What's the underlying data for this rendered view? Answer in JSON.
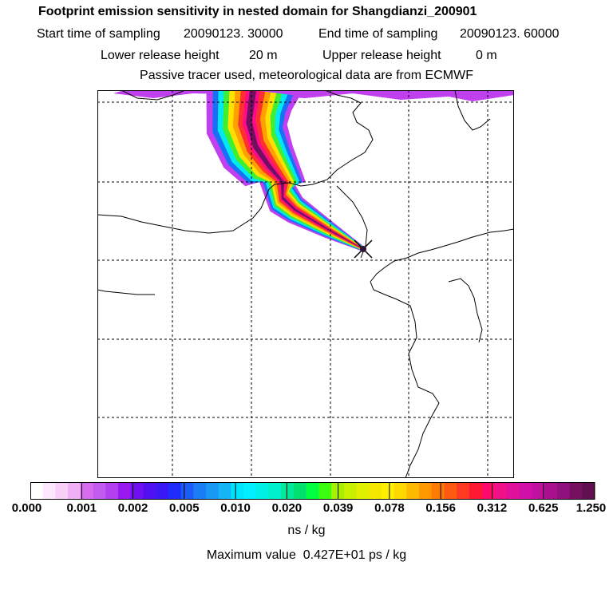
{
  "header": {
    "title": "Footprint emission sensitivity in nested domain for Shangdianzi_200901",
    "start_label": "Start time of sampling",
    "start_value": "20090123. 30000",
    "end_label": "End time of sampling",
    "end_value": "20090123. 60000",
    "lower_label": "Lower release height",
    "lower_value": "20 m",
    "upper_label": "Upper release height",
    "upper_value": "0 m",
    "subtitle": "Passive tracer used, meteorological data are from ECMWF"
  },
  "colorbar": {
    "tick_labels": [
      "0.000",
      "0.001",
      "0.002",
      "0.005",
      "0.010",
      "0.020",
      "0.039",
      "0.078",
      "0.156",
      "0.312",
      "0.625",
      "1.250"
    ],
    "colors": [
      "#ffffff",
      "#fde7fd",
      "#f7cff7",
      "#efb0f5",
      "#d86cf0",
      "#c45bf0",
      "#b23ff0",
      "#9a18f0",
      "#7010f0",
      "#5010f0",
      "#3a18f5",
      "#1e2cfa",
      "#1a5cf8",
      "#1a7df5",
      "#1a98f5",
      "#14b4f5",
      "#00e5ff",
      "#00f0ff",
      "#00f0e6",
      "#00f0cc",
      "#00e89a",
      "#00e070",
      "#00ff40",
      "#3cff10",
      "#a8f000",
      "#c8f000",
      "#e0f000",
      "#f4e800",
      "#fff000",
      "#ffd800",
      "#ffb800",
      "#ff9800",
      "#ff7a00",
      "#ff5a10",
      "#ff3a20",
      "#ff1a30",
      "#ff0a6a",
      "#f0108a",
      "#e0109a",
      "#d010a8",
      "#c010a0",
      "#a81090",
      "#901080",
      "#781060",
      "#601050"
    ],
    "units": "ns / kg"
  },
  "footer": {
    "max_label": "Maximum value",
    "max_value": "0.427E+01 ps / kg"
  },
  "map": {
    "receptor": "Shangdianzi",
    "background": "#ffffff",
    "plume_colors": [
      "#c040f0",
      "#1a70f5",
      "#00e8f0",
      "#40f030",
      "#ffe000",
      "#ffa000",
      "#ff3030",
      "#ff0a8a",
      "#701060"
    ]
  }
}
